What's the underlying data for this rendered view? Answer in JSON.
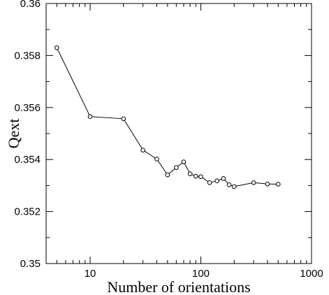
{
  "chart_data": {
    "type": "line",
    "title": "",
    "xlabel": "Number of orientations",
    "ylabel": "Qext",
    "xscale": "log",
    "xlim": [
      4,
      1000
    ],
    "ylim": [
      0.35,
      0.36
    ],
    "grid": false,
    "legend": "none",
    "x_ticks": [
      10,
      100,
      1000
    ],
    "x_tick_labels": [
      "10",
      "100",
      "1000"
    ],
    "y_ticks": [
      0.35,
      0.352,
      0.354,
      0.356,
      0.358,
      0.36
    ],
    "y_tick_labels": [
      "0.35",
      "0.352",
      "0.354",
      "0.356",
      "0.358",
      "0.36"
    ],
    "series": [
      {
        "marker": "open-circle",
        "color": "#000000",
        "x": [
          5,
          10,
          20,
          30,
          40,
          50,
          60,
          70,
          80,
          90,
          100,
          120,
          140,
          160,
          180,
          200,
          300,
          400,
          500
        ],
        "y": [
          0.3583,
          0.35565,
          0.35557,
          0.35436,
          0.35402,
          0.35341,
          0.35369,
          0.35391,
          0.35345,
          0.35336,
          0.35334,
          0.35311,
          0.35318,
          0.35327,
          0.35303,
          0.35296,
          0.35311,
          0.35306,
          0.35305
        ]
      }
    ]
  }
}
